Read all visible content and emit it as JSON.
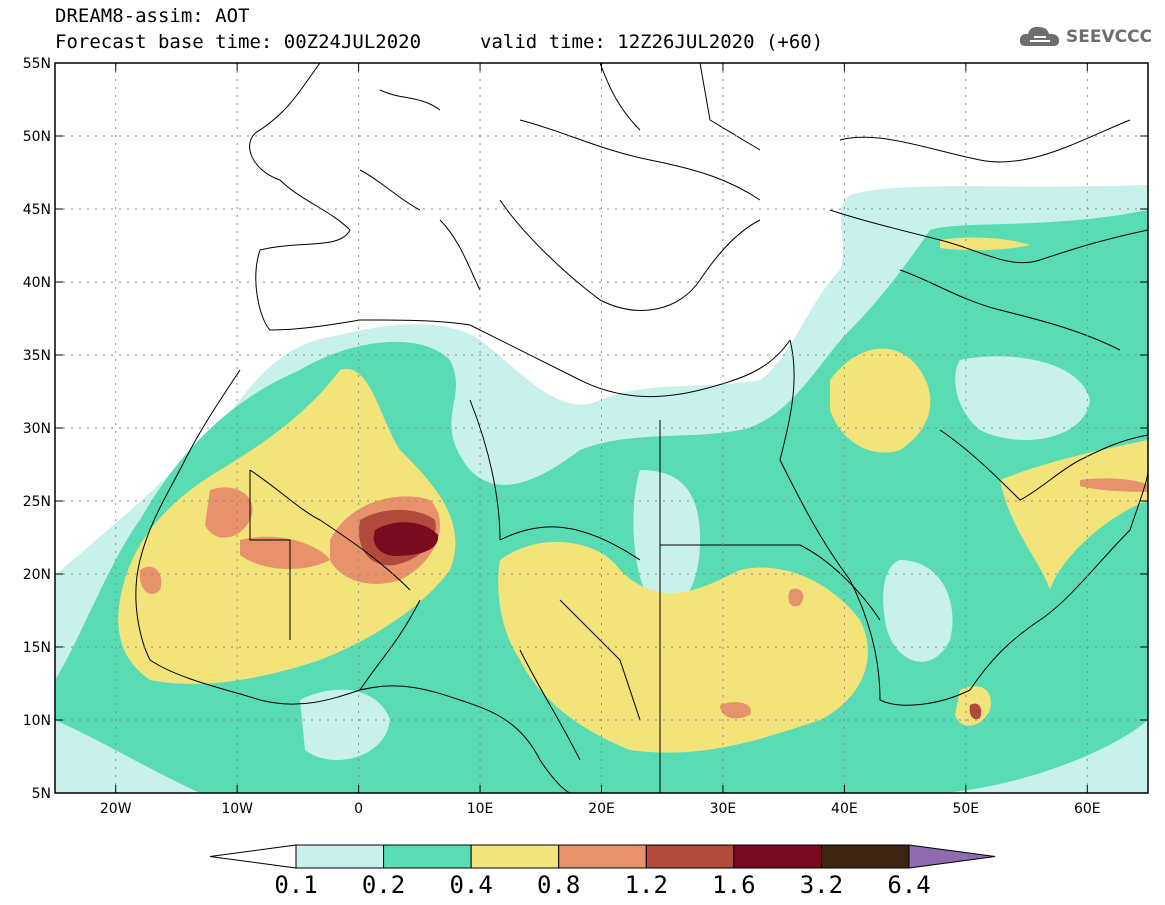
{
  "title": {
    "line1": "DREAM8-assim: AOT",
    "line2": "Forecast base time: 00Z24JUL2020",
    "valid": "valid time: 12Z26JUL2020 (+60)"
  },
  "logo": {
    "text": "SEEVCCC",
    "icon": "cloud-icon"
  },
  "axes": {
    "lat_ticks": [
      "55N",
      "50N",
      "45N",
      "40N",
      "35N",
      "30N",
      "25N",
      "20N",
      "15N",
      "10N",
      "5N"
    ],
    "lon_ticks": [
      "20W",
      "10W",
      "0",
      "10E",
      "20E",
      "30E",
      "40E",
      "50E",
      "60E"
    ],
    "lat_range": [
      5,
      55
    ],
    "lon_range": [
      -25,
      65
    ]
  },
  "colorbar": {
    "levels": [
      "0.1",
      "0.2",
      "0.4",
      "0.8",
      "1.2",
      "1.6",
      "3.2",
      "6.4"
    ],
    "colors": [
      "#c8f1ec",
      "#59dcb3",
      "#f2e37a",
      "#e8926c",
      "#b14a3a",
      "#7a0a1f",
      "#3d2410",
      "#8f6bb0"
    ]
  }
}
